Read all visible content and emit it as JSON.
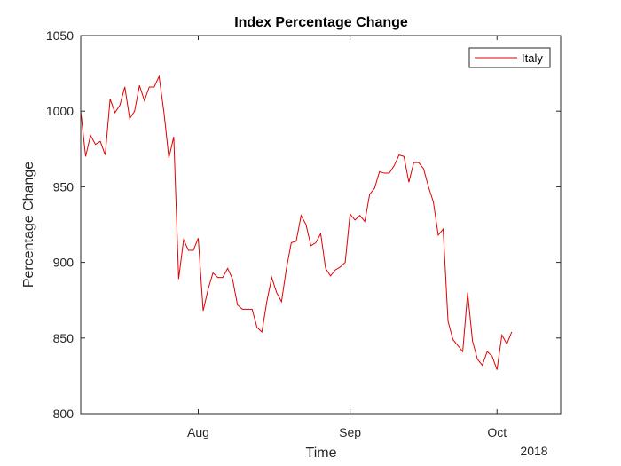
{
  "chart_data": {
    "type": "line",
    "title": "Index Percentage Change",
    "xlabel": "Time",
    "ylabel": "Percentage Change",
    "x_year_label": "2018",
    "x_ticks": [
      {
        "label": "Aug",
        "date": "2018-08-01"
      },
      {
        "label": "Sep",
        "date": "2018-09-01"
      },
      {
        "label": "Oct",
        "date": "2018-10-01"
      }
    ],
    "xlim": [
      "2018-07-08",
      "2018-10-14"
    ],
    "ylim": [
      800,
      1050
    ],
    "y_ticks": [
      800,
      850,
      900,
      950,
      1000,
      1050
    ],
    "grid": false,
    "legend_position": "top-right",
    "series": [
      {
        "name": "Italy",
        "color": "#e00000",
        "points": [
          [
            "2018-07-08",
            1000
          ],
          [
            "2018-07-09",
            970
          ],
          [
            "2018-07-10",
            984
          ],
          [
            "2018-07-11",
            978
          ],
          [
            "2018-07-12",
            980
          ],
          [
            "2018-07-13",
            971
          ],
          [
            "2018-07-14",
            1008
          ],
          [
            "2018-07-15",
            999
          ],
          [
            "2018-07-16",
            1004
          ],
          [
            "2018-07-17",
            1016
          ],
          [
            "2018-07-18",
            995
          ],
          [
            "2018-07-19",
            1000
          ],
          [
            "2018-07-20",
            1017
          ],
          [
            "2018-07-21",
            1007
          ],
          [
            "2018-07-22",
            1016
          ],
          [
            "2018-07-23",
            1016
          ],
          [
            "2018-07-24",
            1023
          ],
          [
            "2018-07-25",
            999
          ],
          [
            "2018-07-26",
            969
          ],
          [
            "2018-07-27",
            983
          ],
          [
            "2018-07-28",
            889
          ],
          [
            "2018-07-29",
            915
          ],
          [
            "2018-07-30",
            908
          ],
          [
            "2018-07-31",
            908
          ],
          [
            "2018-08-01",
            916
          ],
          [
            "2018-08-02",
            868
          ],
          [
            "2018-08-03",
            882
          ],
          [
            "2018-08-04",
            893
          ],
          [
            "2018-08-05",
            890
          ],
          [
            "2018-08-06",
            890
          ],
          [
            "2018-08-07",
            896
          ],
          [
            "2018-08-08",
            889
          ],
          [
            "2018-08-09",
            872
          ],
          [
            "2018-08-10",
            869
          ],
          [
            "2018-08-11",
            869
          ],
          [
            "2018-08-12",
            869
          ],
          [
            "2018-08-13",
            857
          ],
          [
            "2018-08-14",
            854
          ],
          [
            "2018-08-15",
            874
          ],
          [
            "2018-08-16",
            890
          ],
          [
            "2018-08-17",
            880
          ],
          [
            "2018-08-18",
            874
          ],
          [
            "2018-08-19",
            896
          ],
          [
            "2018-08-20",
            913
          ],
          [
            "2018-08-21",
            914
          ],
          [
            "2018-08-22",
            931
          ],
          [
            "2018-08-23",
            925
          ],
          [
            "2018-08-24",
            911
          ],
          [
            "2018-08-25",
            913
          ],
          [
            "2018-08-26",
            919
          ],
          [
            "2018-08-27",
            896
          ],
          [
            "2018-08-28",
            891
          ],
          [
            "2018-08-29",
            895
          ],
          [
            "2018-08-30",
            897
          ],
          [
            "2018-08-31",
            900
          ],
          [
            "2018-09-01",
            932
          ],
          [
            "2018-09-02",
            928
          ],
          [
            "2018-09-03",
            931
          ],
          [
            "2018-09-04",
            927
          ],
          [
            "2018-09-05",
            945
          ],
          [
            "2018-09-06",
            949
          ],
          [
            "2018-09-07",
            960
          ],
          [
            "2018-09-08",
            959
          ],
          [
            "2018-09-09",
            959
          ],
          [
            "2018-09-10",
            964
          ],
          [
            "2018-09-11",
            971
          ],
          [
            "2018-09-12",
            970
          ],
          [
            "2018-09-13",
            953
          ],
          [
            "2018-09-14",
            966
          ],
          [
            "2018-09-15",
            966
          ],
          [
            "2018-09-16",
            962
          ],
          [
            "2018-09-17",
            950
          ],
          [
            "2018-09-18",
            940
          ],
          [
            "2018-09-19",
            918
          ],
          [
            "2018-09-20",
            922
          ],
          [
            "2018-09-21",
            861
          ],
          [
            "2018-09-22",
            849
          ],
          [
            "2018-09-23",
            845
          ],
          [
            "2018-09-24",
            841
          ],
          [
            "2018-09-25",
            880
          ],
          [
            "2018-09-26",
            848
          ],
          [
            "2018-09-27",
            836
          ],
          [
            "2018-09-28",
            832
          ],
          [
            "2018-09-29",
            841
          ],
          [
            "2018-09-30",
            838
          ],
          [
            "2018-10-01",
            829
          ],
          [
            "2018-10-02",
            852
          ],
          [
            "2018-10-03",
            846
          ],
          [
            "2018-10-04",
            854
          ]
        ]
      }
    ]
  }
}
